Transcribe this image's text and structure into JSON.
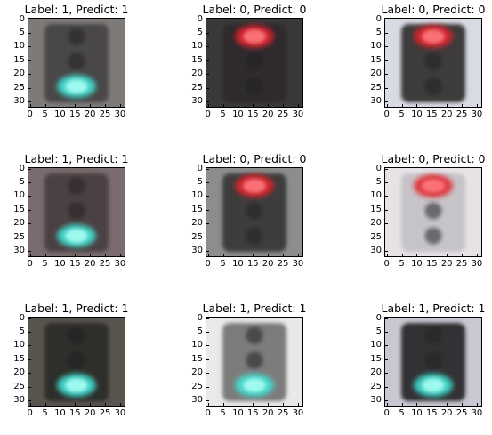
{
  "chart_data": [
    {
      "type": "image",
      "title": "Label: 1, Predict: 1",
      "label": 1,
      "predict": 1,
      "light": "green",
      "lit": "bottom",
      "bg": "#7d7a78",
      "housing": "#4a4646",
      "xlim": [
        0,
        31
      ],
      "ylim": [
        31,
        0
      ],
      "xticks": [
        "0",
        "5",
        "10",
        "15",
        "20",
        "25",
        "30"
      ],
      "yticks": [
        "0",
        "5",
        "10",
        "15",
        "20",
        "25",
        "30"
      ]
    },
    {
      "type": "image",
      "title": "Label: 0, Predict: 0",
      "label": 0,
      "predict": 0,
      "light": "red",
      "lit": "top",
      "bg": "#3a3838",
      "housing": "#2e2c2d",
      "xlim": [
        0,
        31
      ],
      "ylim": [
        31,
        0
      ],
      "xticks": [
        "0",
        "5",
        "10",
        "15",
        "20",
        "25",
        "30"
      ],
      "yticks": [
        "0",
        "5",
        "10",
        "15",
        "20",
        "25",
        "30"
      ]
    },
    {
      "type": "image",
      "title": "Label: 0, Predict: 0",
      "label": 0,
      "predict": 0,
      "light": "red",
      "lit": "top",
      "bg": "#d9dbe3",
      "housing": "#3c3a3b",
      "xlim": [
        0,
        31
      ],
      "ylim": [
        31,
        0
      ],
      "xticks": [
        "0",
        "5",
        "10",
        "15",
        "20",
        "25",
        "30"
      ],
      "yticks": [
        "0",
        "5",
        "10",
        "15",
        "20",
        "25",
        "30"
      ]
    },
    {
      "type": "image",
      "title": "Label: 1, Predict: 1",
      "label": 1,
      "predict": 1,
      "light": "green",
      "lit": "bottom",
      "bg": "#7a6b6e",
      "housing": "#4b3f43",
      "xlim": [
        0,
        31
      ],
      "ylim": [
        31,
        0
      ],
      "xticks": [
        "0",
        "5",
        "10",
        "15",
        "20",
        "25",
        "30"
      ],
      "yticks": [
        "0",
        "5",
        "10",
        "15",
        "20",
        "25",
        "30"
      ]
    },
    {
      "type": "image",
      "title": "Label: 0, Predict: 0",
      "label": 0,
      "predict": 0,
      "light": "red",
      "lit": "top",
      "bg": "#8c8d8d",
      "housing": "#3e3d3e",
      "xlim": [
        0,
        31
      ],
      "ylim": [
        31,
        0
      ],
      "xticks": [
        "0",
        "5",
        "10",
        "15",
        "20",
        "25",
        "30"
      ],
      "yticks": [
        "0",
        "5",
        "10",
        "15",
        "20",
        "25",
        "30"
      ]
    },
    {
      "type": "image",
      "title": "Label: 0, Predict: 0",
      "label": 0,
      "predict": 0,
      "light": "red",
      "lit": "top",
      "bg": "#e6e2e6",
      "housing": "#c6c4c8",
      "xlim": [
        0,
        31
      ],
      "ylim": [
        31,
        0
      ],
      "xticks": [
        "0",
        "5",
        "10",
        "15",
        "20",
        "25",
        "30"
      ],
      "yticks": [
        "0",
        "5",
        "10",
        "15",
        "20",
        "25",
        "30"
      ]
    },
    {
      "type": "image",
      "title": "Label: 1, Predict: 1",
      "label": 1,
      "predict": 1,
      "light": "green",
      "lit": "bottom",
      "bg": "#5a544e",
      "housing": "#2f2d2c",
      "xlim": [
        0,
        31
      ],
      "ylim": [
        31,
        0
      ],
      "xticks": [
        "0",
        "5",
        "10",
        "15",
        "20",
        "25",
        "30"
      ],
      "yticks": [
        "0",
        "5",
        "10",
        "15",
        "20",
        "25",
        "30"
      ]
    },
    {
      "type": "image",
      "title": "Label: 1, Predict: 1",
      "label": 1,
      "predict": 1,
      "light": "green",
      "lit": "bottom",
      "bg": "#e9e8ea",
      "housing": "#7d7b7c",
      "xlim": [
        0,
        31
      ],
      "ylim": [
        31,
        0
      ],
      "xticks": [
        "0",
        "5",
        "10",
        "15",
        "20",
        "25",
        "30"
      ],
      "yticks": [
        "0",
        "5",
        "10",
        "15",
        "20",
        "25",
        "30"
      ]
    },
    {
      "type": "image",
      "title": "Label: 1, Predict: 1",
      "label": 1,
      "predict": 1,
      "light": "green",
      "lit": "bottom",
      "bg": "#c9c8d2",
      "housing": "#333234",
      "xlim": [
        0,
        31
      ],
      "ylim": [
        31,
        0
      ],
      "xticks": [
        "0",
        "5",
        "10",
        "15",
        "20",
        "25",
        "30"
      ],
      "yticks": [
        "0",
        "5",
        "10",
        "15",
        "20",
        "25",
        "30"
      ]
    }
  ]
}
